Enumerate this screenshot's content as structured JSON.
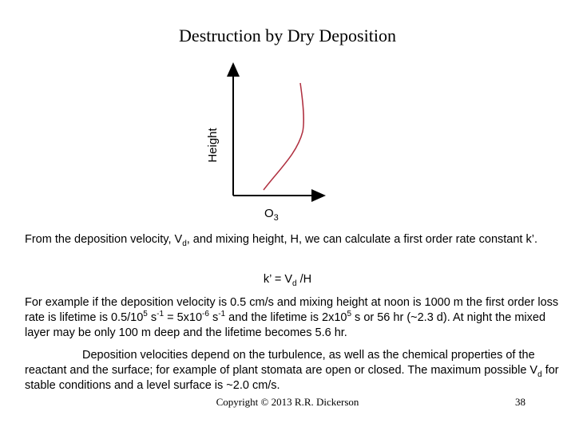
{
  "title": "Destruction by Dry Deposition",
  "diagram": {
    "y_label": "Height",
    "x_label": [
      "O",
      "3"
    ]
  },
  "paragraphs": [
    [
      "From the deposition velocity, V",
      "d",
      ", and mixing height, H, we can calculate a first order rate constant k’."
    ],
    [
      "k’ = V",
      "d",
      " /H"
    ],
    [
      "For example if the deposition velocity is 0.5 cm/s and mixing height at noon is 1000 m the first order loss rate is lifetime is 0.5/10",
      "5",
      " s",
      "-1",
      " = 5x10",
      "-6",
      " s",
      "-1",
      " and the lifetime is 2x10",
      "5",
      " s or 56 hr (~2.3 d). At night the mixed layer may be only 100 m deep and the lifetime becomes 5.6 hr."
    ],
    [
      "Deposition velocities depend on the turbulence, as well as the chemical properties of the reactant and the surface; for example of plant stomata are open or closed.  The maximum possible V",
      "d",
      " for stable conditions and a level surface is ~2.0 cm/s."
    ]
  ],
  "footer": {
    "copyright": "Copyright © 2013  R.R. Dickerson",
    "page": "38"
  }
}
